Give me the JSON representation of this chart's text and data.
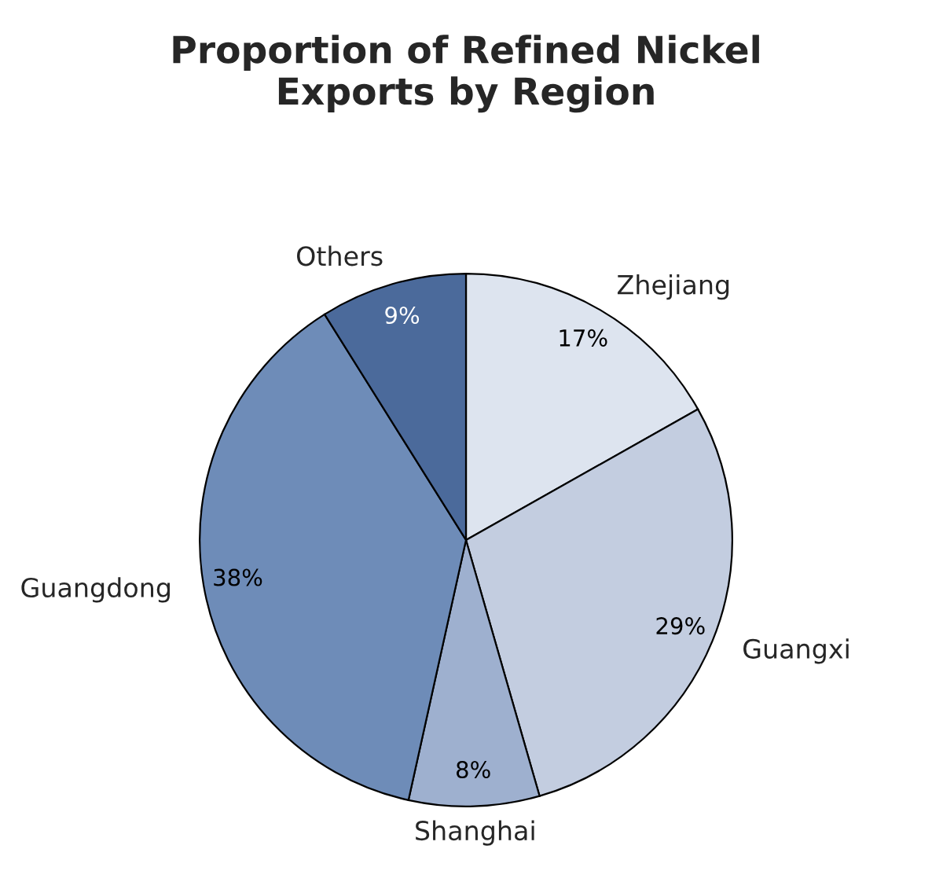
{
  "chart_data": {
    "type": "pie",
    "title": "Proportion of Refined Nickel\nExports by Region",
    "categories": [
      "Zhejiang",
      "Guangxi",
      "Shanghai",
      "Guangdong",
      "Others"
    ],
    "values": [
      17,
      29,
      8,
      38,
      9
    ],
    "colors": [
      "#dde4ef",
      "#c3cde0",
      "#9eb0cf",
      "#6e8cb8",
      "#4b6a9b"
    ],
    "value_labels": [
      "17%",
      "29%",
      "8%",
      "38%",
      "9%"
    ],
    "legend": false
  }
}
